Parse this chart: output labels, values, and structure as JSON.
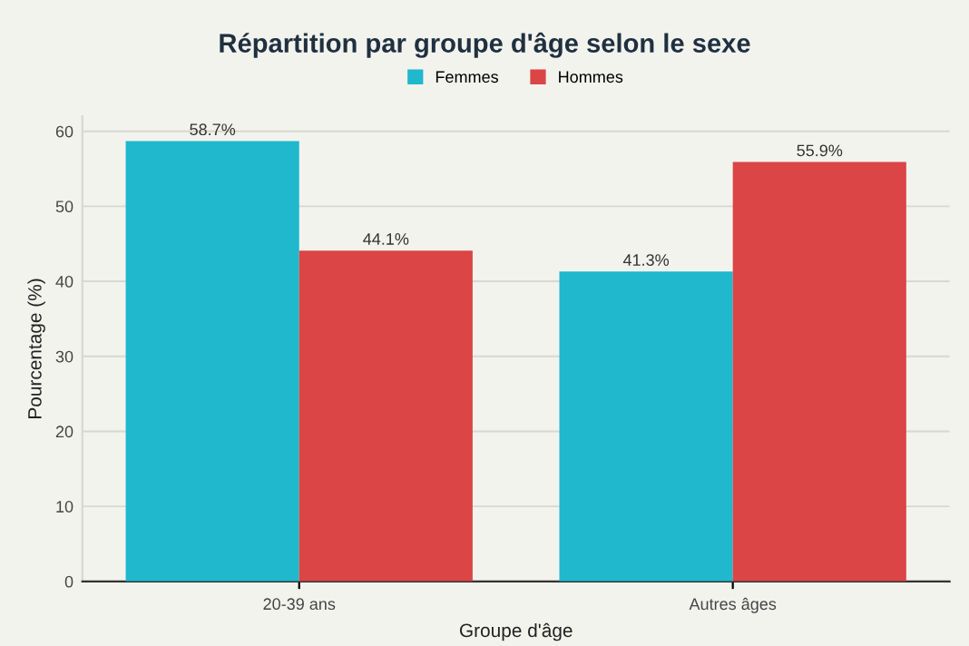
{
  "chart_data": {
    "type": "bar",
    "title": "Répartition par groupe d'âge selon le sexe",
    "xlabel": "Groupe d'âge",
    "ylabel": "Pourcentage (%)",
    "categories": [
      "20-39 ans",
      "Autres âges"
    ],
    "series": [
      {
        "name": "Femmes",
        "color": "#1fb8cd",
        "values": [
          58.7,
          41.3
        ],
        "value_labels": [
          "58.7%",
          "41.3%"
        ]
      },
      {
        "name": "Hommes",
        "color": "#db4545",
        "values": [
          44.1,
          55.9
        ],
        "value_labels": [
          "44.1%",
          "55.9%"
        ]
      }
    ],
    "ylim": [
      0,
      62
    ],
    "yticks": [
      0,
      10,
      20,
      30,
      40,
      50,
      60
    ],
    "grid": "y",
    "legend": "top"
  }
}
